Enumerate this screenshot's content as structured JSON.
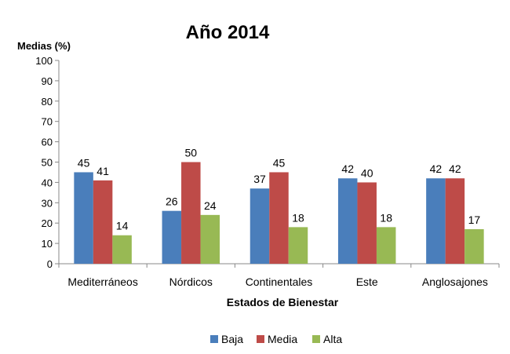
{
  "chart_data": {
    "type": "bar",
    "title": "Año 2014",
    "ylabel": "Medias (%)",
    "xlabel": "Estados de Bienestar",
    "categories": [
      "Mediterráneos",
      "Nórdicos",
      "Continentales",
      "Este",
      "Anglosajones"
    ],
    "series": [
      {
        "name": "Baja",
        "color": "#4a7ebb",
        "values": [
          45,
          26,
          37,
          42,
          42
        ]
      },
      {
        "name": "Media",
        "color": "#be4b48",
        "values": [
          41,
          50,
          45,
          40,
          42
        ]
      },
      {
        "name": "Alta",
        "color": "#98b954",
        "values": [
          14,
          24,
          18,
          18,
          17
        ]
      }
    ],
    "data_labels": [
      [
        "45",
        "26",
        "37",
        "42",
        "42"
      ],
      [
        "41",
        "50",
        "45",
        "40",
        "42"
      ],
      [
        "14",
        "24",
        "18",
        "18",
        "17"
      ]
    ],
    "ylim": [
      0,
      100
    ],
    "yticks": [
      0,
      10,
      20,
      30,
      40,
      50,
      60,
      70,
      80,
      90,
      100
    ],
    "grid": false,
    "legend": "bottom"
  }
}
